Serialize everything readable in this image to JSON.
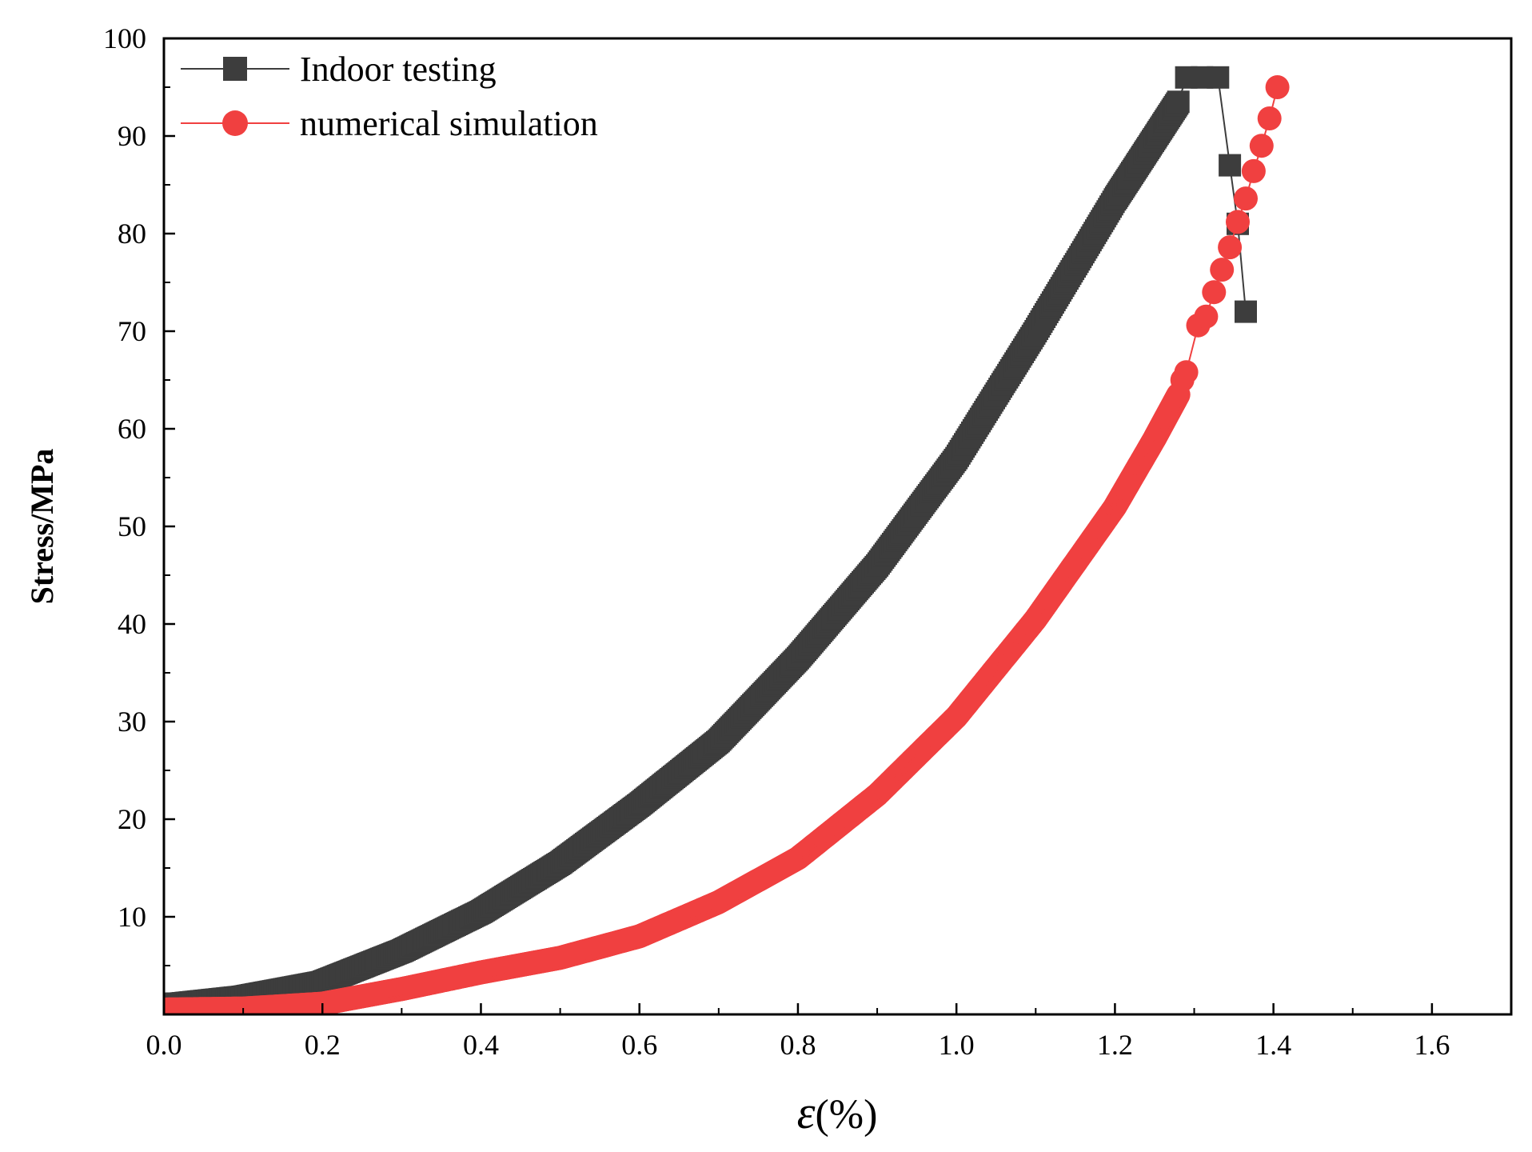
{
  "chart_data": {
    "type": "scatter",
    "title": "",
    "xlabel_symbol": "ε",
    "xlabel_unit": "(%)",
    "ylabel": "Stress/MPa",
    "xlim": [
      0,
      1.7
    ],
    "ylim": [
      0,
      100
    ],
    "x_ticks": [
      0.0,
      0.2,
      0.4,
      0.6,
      0.8,
      1.0,
      1.2,
      1.4,
      1.6
    ],
    "x_tick_labels": [
      "0.0",
      "0.2",
      "0.4",
      "0.6",
      "0.8",
      "1.0",
      "1.2",
      "1.4",
      "1.6"
    ],
    "y_ticks": [
      10,
      20,
      30,
      40,
      50,
      60,
      70,
      80,
      90,
      100
    ],
    "y_tick_labels": [
      "10",
      "20",
      "30",
      "40",
      "50",
      "60",
      "70",
      "80",
      "90",
      "100"
    ],
    "legend_position": "top-left",
    "series": [
      {
        "name": "Indoor testing",
        "marker": "square",
        "color": "#3d3d3d",
        "curve": [
          [
            0.0,
            1.0
          ],
          [
            0.02,
            1.1
          ],
          [
            0.1,
            1.8
          ],
          [
            0.2,
            3.3
          ],
          [
            0.3,
            6.5
          ],
          [
            0.4,
            10.5
          ],
          [
            0.5,
            15.5
          ],
          [
            0.6,
            21.5
          ],
          [
            0.7,
            28.0
          ],
          [
            0.8,
            36.5
          ],
          [
            0.9,
            46.0
          ],
          [
            1.0,
            57.0
          ],
          [
            1.1,
            70.0
          ],
          [
            1.2,
            83.5
          ],
          [
            1.28,
            93.5
          ]
        ],
        "tail": [
          [
            1.29,
            96.0
          ],
          [
            1.31,
            96.0
          ],
          [
            1.33,
            96.0
          ],
          [
            1.345,
            87.0
          ],
          [
            1.355,
            81.0
          ],
          [
            1.365,
            72.0
          ]
        ]
      },
      {
        "name": "numerical simulation",
        "marker": "circle",
        "color": "#f04040",
        "curve": [
          [
            0.0,
            0.5
          ],
          [
            0.1,
            0.6
          ],
          [
            0.2,
            1.1
          ],
          [
            0.3,
            2.6
          ],
          [
            0.4,
            4.3
          ],
          [
            0.5,
            5.8
          ],
          [
            0.6,
            8.0
          ],
          [
            0.7,
            11.5
          ],
          [
            0.8,
            16.0
          ],
          [
            0.9,
            22.5
          ],
          [
            1.0,
            30.5
          ],
          [
            1.1,
            40.5
          ],
          [
            1.2,
            52.0
          ],
          [
            1.25,
            59.0
          ],
          [
            1.28,
            63.5
          ]
        ],
        "tail": [
          [
            1.285,
            65.0
          ],
          [
            1.29,
            65.8
          ],
          [
            1.305,
            70.6
          ],
          [
            1.315,
            71.5
          ],
          [
            1.325,
            74.0
          ],
          [
            1.335,
            76.3
          ],
          [
            1.345,
            78.6
          ],
          [
            1.355,
            81.2
          ],
          [
            1.365,
            83.6
          ],
          [
            1.375,
            86.4
          ],
          [
            1.385,
            89.0
          ],
          [
            1.395,
            91.8
          ],
          [
            1.405,
            95.0
          ]
        ]
      }
    ]
  }
}
